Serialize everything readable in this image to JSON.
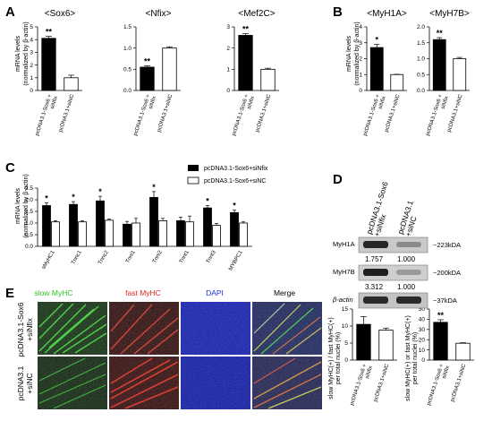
{
  "panel_letters": [
    "A",
    "B",
    "C",
    "D",
    "E"
  ],
  "colors": {
    "black_bar": "#000000",
    "white_bar": "#ffffff",
    "green": "#27c21f",
    "red": "#e0281e",
    "blue": "#2030d8"
  },
  "panel_a_ylabel": [
    "mRNA levels",
    "(normalized by β-actin)"
  ],
  "panel_b_ylabel": [
    "mRNA levels",
    "(normalized by β-actin)"
  ],
  "panel_c_ylabel": [
    "mRNA levels",
    "(normalized by β-actin)"
  ],
  "panel_e_ylabels": [
    [
      "slow MyHC(+) / fast MyHC(+)",
      "per total nuclei (%)"
    ],
    [
      "slow MyHC(+) or fast MyHC(+)",
      "per total nuclei (%)"
    ]
  ],
  "legend_c": [
    "pcDNA3.1-Sox6+siNfix",
    "pcDNA3.1-Sox6+siNC"
  ],
  "chart_data": [
    {
      "type": "bar",
      "title": "<Sox6>",
      "categories": [
        "pcDNA3.1-Sox6 + siNfix",
        "pcDNA3.1+siNC"
      ],
      "values": [
        4.1,
        1.0
      ],
      "errors": [
        0.15,
        0.2
      ],
      "ylim": [
        0,
        5
      ],
      "yticks": [
        0,
        1,
        2,
        3,
        4,
        5
      ],
      "significance": [
        "**",
        ""
      ]
    },
    {
      "type": "bar",
      "title": "<Nfix>",
      "categories": [
        "pcDNA3.1-Sox6 + siNfix",
        "pcDNA3.1+siNC"
      ],
      "values": [
        0.55,
        1.0
      ],
      "errors": [
        0.03,
        0.03
      ],
      "ylim": [
        0,
        1.5
      ],
      "yticks": [
        0.0,
        0.5,
        1.0,
        1.5
      ],
      "significance": [
        "**",
        ""
      ]
    },
    {
      "type": "bar",
      "title": "<Mef2C>",
      "categories": [
        "pcDNA3.1-Sox6 + siNfix",
        "pcDNA3.1+siNC"
      ],
      "values": [
        2.6,
        1.0
      ],
      "errors": [
        0.08,
        0.05
      ],
      "ylim": [
        0,
        3
      ],
      "yticks": [
        0,
        1,
        2,
        3
      ],
      "significance": [
        "**",
        ""
      ]
    },
    {
      "type": "bar",
      "title": "<MyH1A>",
      "categories": [
        "pcDNA3.1-Sox6 + siNfix",
        "pcDNA3.1+siNC"
      ],
      "values": [
        2.7,
        1.0
      ],
      "errors": [
        0.2,
        0.02
      ],
      "ylim": [
        0,
        4
      ],
      "yticks": [
        0,
        1,
        2,
        3,
        4
      ],
      "significance": [
        "*",
        ""
      ]
    },
    {
      "type": "bar",
      "title": "<MyH7B>",
      "categories": [
        "pcDNA3.1-Sox6 + siNfix",
        "pcDNA3.1+siNC"
      ],
      "values": [
        1.6,
        1.0
      ],
      "errors": [
        0.06,
        0.04
      ],
      "ylim": [
        0,
        2
      ],
      "yticks": [
        0.0,
        0.5,
        1.0,
        1.5,
        2.0
      ],
      "significance": [
        "**",
        ""
      ]
    },
    {
      "type": "bar",
      "categories": [
        "sMyHC1",
        "Tnnc1",
        "Tnnc2",
        "Tnni1",
        "Tnni2",
        "Tnnt1",
        "Tnnt3",
        "MYBPC1"
      ],
      "series": [
        {
          "name": "pcDNA3.1-Sox6+siNfix",
          "values": [
            1.75,
            1.8,
            1.95,
            0.95,
            2.1,
            1.1,
            1.65,
            1.45
          ],
          "errors": [
            0.12,
            0.12,
            0.2,
            0.12,
            0.25,
            0.15,
            0.1,
            0.1
          ],
          "significance": [
            "*",
            "*",
            "*",
            "",
            "*",
            "",
            "*",
            "*"
          ]
        },
        {
          "name": "pcDNA3.1-Sox6+siNC",
          "values": [
            1.05,
            1.05,
            1.12,
            1.0,
            1.1,
            1.05,
            0.9,
            1.0
          ],
          "errors": [
            0.05,
            0.05,
            0.05,
            0.2,
            0.1,
            0.25,
            0.08,
            0.05
          ]
        }
      ],
      "ylim": [
        0,
        2.5
      ],
      "yticks": [
        0.0,
        0.5,
        1.0,
        1.5,
        2.0,
        2.5
      ]
    },
    {
      "type": "bar",
      "categories": [
        "pcDNA3.1-Sox6 + siNfix",
        "pcDNA3.1+siNC"
      ],
      "values": [
        10.5,
        8.8
      ],
      "errors": [
        2.3,
        0.6
      ],
      "ylim": [
        0,
        15
      ],
      "yticks": [
        0,
        5,
        10,
        15
      ],
      "significance": [
        "",
        ""
      ]
    },
    {
      "type": "bar",
      "categories": [
        "pcDNA3.1-Sox6 + siNfix",
        "pcDNA3.1+siNC"
      ],
      "values": [
        37.0,
        16.5
      ],
      "errors": [
        2.5,
        0.5
      ],
      "ylim": [
        0,
        50
      ],
      "yticks": [
        0,
        10,
        20,
        30,
        40,
        50
      ],
      "significance": [
        "**",
        ""
      ]
    }
  ],
  "western": {
    "columns": [
      "pcDNA3.1-Sox6 +siNfix",
      "pcDNA3.1 +siNC"
    ],
    "rows": [
      {
        "name": "MyH1A",
        "size": "~223kDA",
        "values": [
          "1.757",
          "1.000"
        ]
      },
      {
        "name": "MyH7B",
        "size": "~200kDA",
        "values": [
          "3.312",
          "1.000"
        ]
      },
      {
        "name": "β-actin",
        "size": "~37kDA",
        "values": []
      }
    ]
  },
  "micrographs": {
    "headers": [
      "slow MyHC",
      "fast MyHC",
      "DAPI",
      "Merge"
    ],
    "row_labels": [
      [
        "pcDNA3.1-Sox6",
        "+siNfix"
      ],
      [
        "pcDNA3.1",
        "+siNC"
      ]
    ]
  }
}
